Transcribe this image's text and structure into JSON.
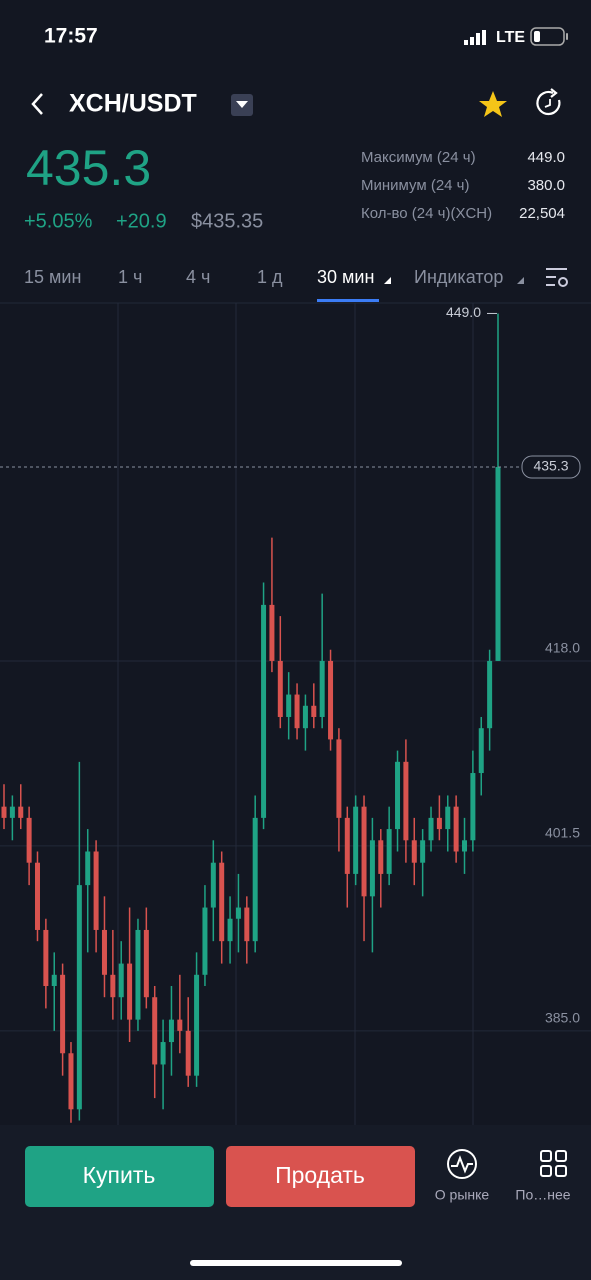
{
  "status": {
    "time": "17:57",
    "network": "LTE"
  },
  "header": {
    "pair": "XCH/USDT"
  },
  "ticker": {
    "price": "435.3",
    "change_pct": "+5.05%",
    "change": "+20.9",
    "usd": "$435.35"
  },
  "stats": [
    {
      "label": "Максимум (24 ч)",
      "value": "449.0"
    },
    {
      "label": "Минимум (24 ч)",
      "value": "380.0"
    },
    {
      "label": "Кол-во (24 ч)(XCH)",
      "value": "22,504"
    }
  ],
  "tabs": [
    "15 мин",
    "1 ч",
    "4 ч",
    "1 д",
    "30 мин",
    "Индикатор"
  ],
  "chart_data": {
    "type": "candlestick",
    "candles": [
      [
        405,
        407,
        403,
        404
      ],
      [
        404,
        406,
        402,
        405
      ],
      [
        405,
        407,
        403,
        404
      ],
      [
        404,
        405,
        398,
        400
      ],
      [
        400,
        401,
        393,
        394
      ],
      [
        394,
        395,
        387,
        389
      ],
      [
        389,
        392,
        385,
        390
      ],
      [
        390,
        391,
        381,
        383
      ],
      [
        383,
        384,
        376.8,
        378
      ],
      [
        378,
        409,
        377,
        398
      ],
      [
        398,
        403,
        392,
        401
      ],
      [
        401,
        402,
        392,
        394
      ],
      [
        394,
        397,
        388,
        390
      ],
      [
        390,
        394,
        386,
        388
      ],
      [
        388,
        393,
        386,
        391
      ],
      [
        391,
        396,
        384,
        386
      ],
      [
        386,
        395,
        385,
        394
      ],
      [
        394,
        396,
        387,
        388
      ],
      [
        388,
        389,
        379,
        382
      ],
      [
        382,
        386,
        378,
        384
      ],
      [
        384,
        389,
        381,
        386
      ],
      [
        386,
        390,
        383,
        385
      ],
      [
        385,
        388,
        380,
        381
      ],
      [
        381,
        392,
        380,
        390
      ],
      [
        390,
        398,
        389,
        396
      ],
      [
        396,
        402,
        393,
        400
      ],
      [
        400,
        401,
        391,
        393
      ],
      [
        393,
        397,
        391,
        395
      ],
      [
        395,
        399,
        392,
        396
      ],
      [
        396,
        397,
        391,
        393
      ],
      [
        393,
        406,
        392,
        404
      ],
      [
        404,
        425,
        403,
        423
      ],
      [
        423,
        429,
        417,
        418
      ],
      [
        418,
        422,
        412,
        413
      ],
      [
        413,
        417,
        411,
        415
      ],
      [
        415,
        416,
        411,
        412
      ],
      [
        412,
        415,
        410,
        414
      ],
      [
        414,
        416,
        412,
        413
      ],
      [
        413,
        424,
        412,
        418
      ],
      [
        418,
        419,
        410,
        411
      ],
      [
        411,
        412,
        401,
        404
      ],
      [
        404,
        405,
        396,
        399
      ],
      [
        399,
        406,
        398,
        405
      ],
      [
        405,
        406,
        393,
        397
      ],
      [
        397,
        404,
        392,
        402
      ],
      [
        402,
        403,
        396,
        399
      ],
      [
        399,
        405,
        398,
        403
      ],
      [
        403,
        410,
        401,
        409
      ],
      [
        409,
        411,
        400,
        402
      ],
      [
        402,
        404,
        398,
        400
      ],
      [
        400,
        403,
        397,
        402
      ],
      [
        402,
        405,
        401,
        404
      ],
      [
        404,
        406,
        402,
        403
      ],
      [
        403,
        406,
        401,
        405
      ],
      [
        405,
        406,
        400,
        401
      ],
      [
        401,
        404,
        399,
        402
      ],
      [
        402,
        410,
        401,
        408
      ],
      [
        408,
        413,
        406,
        412
      ],
      [
        412,
        419,
        410,
        418
      ],
      [
        418,
        449,
        418,
        435.3
      ]
    ],
    "up_color": "#1fa385",
    "down_color": "#d9534f",
    "ylim": [
      376.6,
      450.2
    ],
    "yticks": [
      {
        "value": 418,
        "label": "418.0"
      },
      {
        "value": 401.5,
        "label": "401.5"
      },
      {
        "value": 385,
        "label": "385.0"
      }
    ],
    "high_marker": {
      "value": 449,
      "label": "449.0"
    },
    "last_price": {
      "value": 435.3,
      "label": "435.3"
    }
  },
  "actions": {
    "buy": "Купить",
    "sell": "Продать",
    "market": "О рынке",
    "more": "По…нее"
  }
}
